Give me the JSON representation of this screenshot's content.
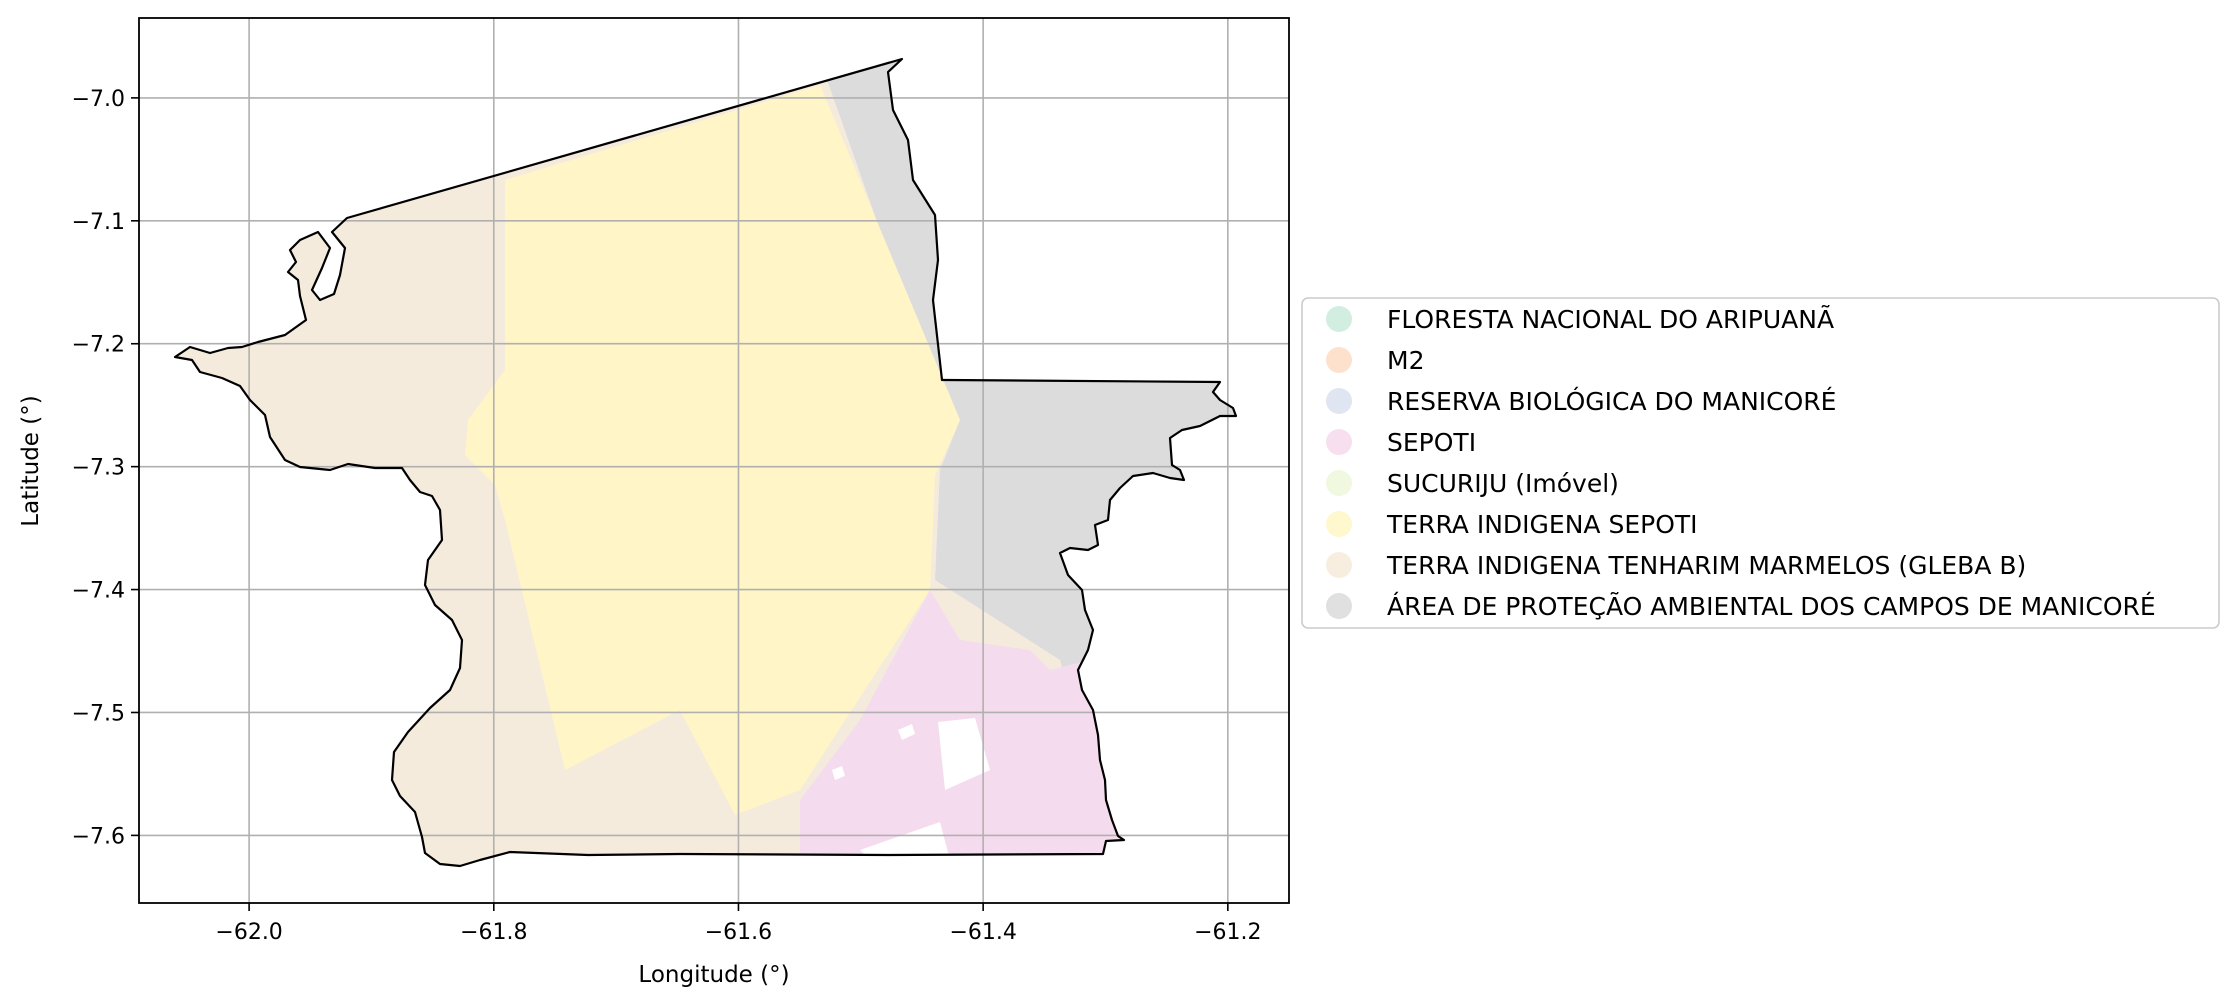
{
  "map": {
    "xlabel": "Longitude (°)",
    "ylabel": "Latitude (°)",
    "xlim": [
      -62.09,
      -61.15
    ],
    "ylim": [
      -7.655,
      -6.935
    ],
    "grid": true,
    "xticks": [
      {
        "value": -62.0,
        "label": "−62.0"
      },
      {
        "value": -61.8,
        "label": "−61.8"
      },
      {
        "value": -61.6,
        "label": "−61.6"
      },
      {
        "value": -61.4,
        "label": "−61.4"
      },
      {
        "value": -61.2,
        "label": "−61.2"
      }
    ],
    "yticks": [
      {
        "value": -7.0,
        "label": "−7.0"
      },
      {
        "value": -7.1,
        "label": "−7.1"
      },
      {
        "value": -7.2,
        "label": "−7.2"
      },
      {
        "value": -7.3,
        "label": "−7.3"
      },
      {
        "value": -7.4,
        "label": "−7.4"
      },
      {
        "value": -7.5,
        "label": "−7.5"
      },
      {
        "value": -7.6,
        "label": "−7.6"
      }
    ],
    "legend_position": "right",
    "legend": [
      {
        "label": "FLORESTA NACIONAL DO ARIPUANÃ",
        "color": "#b3e2cd"
      },
      {
        "label": "M2",
        "color": "#fdcdac"
      },
      {
        "label": "RESERVA BIOLÓGICA DO MANICORÉ",
        "color": "#cbd5e8"
      },
      {
        "label": "SEPOTI",
        "color": "#f4cae4"
      },
      {
        "label": "SUCURIJU (Imóvel)",
        "color": "#e6f5c9"
      },
      {
        "label": "TERRA INDIGENA SEPOTI",
        "color": "#fff2ae"
      },
      {
        "label": "TERRA INDIGENA TENHARIM MARMELOS (GLEBA B)",
        "color": "#f1e2cc"
      },
      {
        "label": "ÁREA DE PROTEÇÃO AMBIENTAL DOS CAMPOS DE MANICORÉ",
        "color": "#cccccc"
      }
    ]
  }
}
